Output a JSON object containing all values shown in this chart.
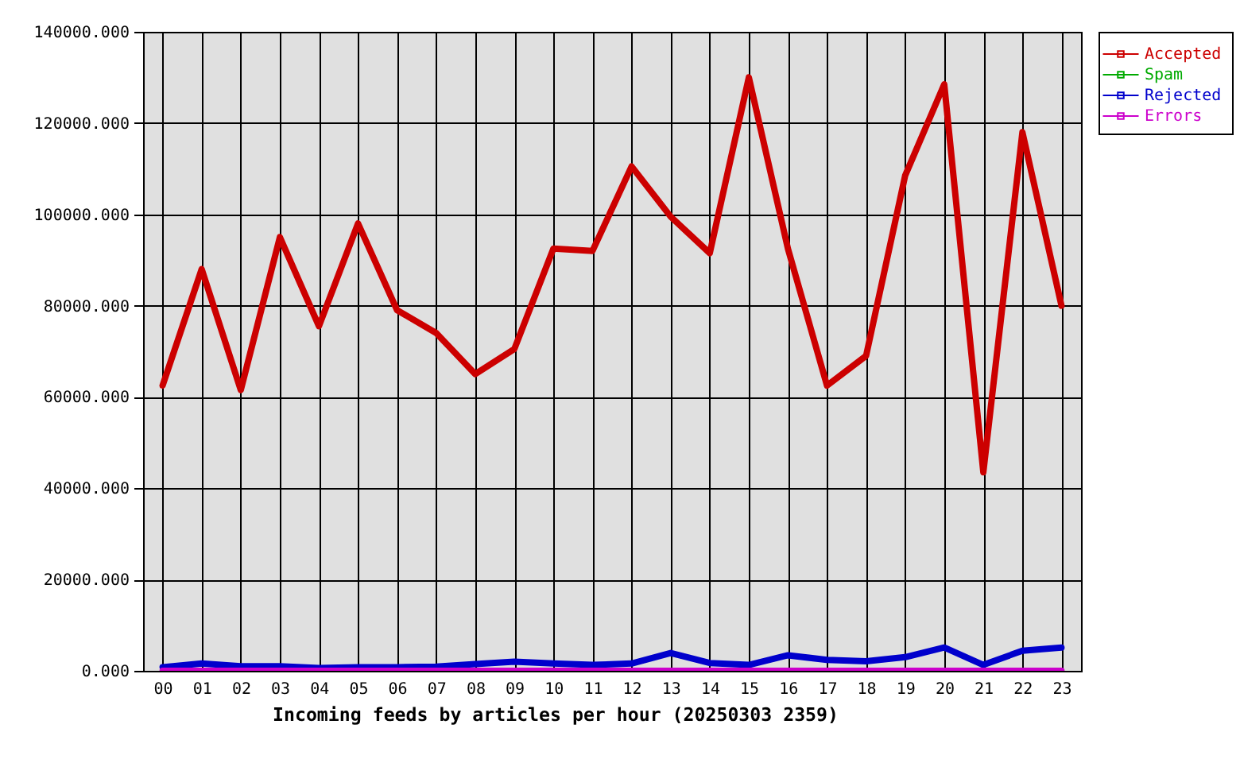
{
  "chart_data": {
    "type": "line",
    "xlabel": "Incoming feeds by articles per hour (20250303 2359)",
    "categories": [
      "00",
      "01",
      "02",
      "03",
      "04",
      "05",
      "06",
      "07",
      "08",
      "09",
      "10",
      "11",
      "12",
      "13",
      "14",
      "15",
      "16",
      "17",
      "18",
      "19",
      "20",
      "21",
      "22",
      "23"
    ],
    "series": [
      {
        "name": "Accepted",
        "color": "#cc0000",
        "values": [
          62500,
          88000,
          61500,
          95000,
          75500,
          98000,
          79000,
          74000,
          65000,
          70500,
          92500,
          92000,
          110500,
          99500,
          91500,
          130000,
          92500,
          62500,
          69000,
          108500,
          128500,
          43500,
          118000,
          80000
        ]
      },
      {
        "name": "Spam",
        "color": "#00aa00",
        "values": [
          null,
          null,
          null,
          null,
          null,
          null,
          null,
          null,
          null,
          null,
          null,
          null,
          null,
          null,
          null,
          null,
          null,
          null,
          null,
          null,
          null,
          null,
          null,
          null
        ]
      },
      {
        "name": "Rejected",
        "color": "#0000cc",
        "values": [
          800,
          1600,
          1000,
          1000,
          600,
          800,
          800,
          900,
          1500,
          2000,
          1600,
          1300,
          1600,
          3900,
          1700,
          1300,
          3400,
          2400,
          2100,
          3000,
          5100,
          1300,
          4400,
          5100
        ]
      },
      {
        "name": "Errors",
        "color": "#cc00cc",
        "values": [
          0,
          0,
          0,
          0,
          0,
          0,
          0,
          0,
          0,
          0,
          0,
          0,
          0,
          0,
          0,
          0,
          0,
          0,
          0,
          0,
          0,
          0,
          0,
          0
        ]
      }
    ],
    "ylim": [
      0,
      140000
    ],
    "yticks": [
      {
        "value": 0,
        "label": "0.000"
      },
      {
        "value": 20000,
        "label": "20000.000"
      },
      {
        "value": 40000,
        "label": "40000.000"
      },
      {
        "value": 60000,
        "label": "60000.000"
      },
      {
        "value": 80000,
        "label": "80000.000"
      },
      {
        "value": 100000,
        "label": "100000.000"
      },
      {
        "value": 120000,
        "label": "120000.000"
      },
      {
        "value": 140000,
        "label": "140000.000"
      }
    ],
    "grid": true,
    "legend": "top right"
  }
}
